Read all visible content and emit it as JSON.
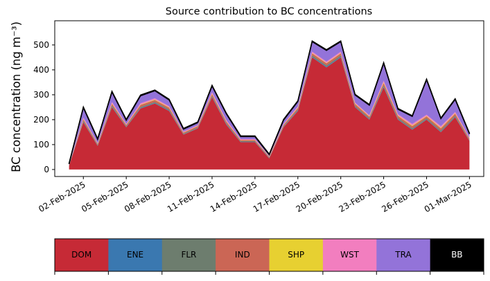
{
  "chart_data": {
    "type": "stacked_area",
    "title": "Source contribution to BC concentrations",
    "y_label": "BC concentration (ng m⁻³)",
    "x": [
      "01-Feb-2025",
      "02-Feb-2025",
      "03-Feb-2025",
      "04-Feb-2025",
      "05-Feb-2025",
      "06-Feb-2025",
      "07-Feb-2025",
      "08-Feb-2025",
      "09-Feb-2025",
      "10-Feb-2025",
      "11-Feb-2025",
      "12-Feb-2025",
      "13-Feb-2025",
      "14-Feb-2025",
      "15-Feb-2025",
      "16-Feb-2025",
      "17-Feb-2025",
      "18-Feb-2025",
      "19-Feb-2025",
      "20-Feb-2025",
      "21-Feb-2025",
      "22-Feb-2025",
      "23-Feb-2025",
      "24-Feb-2025",
      "25-Feb-2025",
      "26-Feb-2025",
      "27-Feb-2025",
      "28-Feb-2025",
      "01-Mar-2025"
    ],
    "xlim": [
      "31-Jan-2025",
      "02-Mar-2025"
    ],
    "xticks": [
      "02-Feb-2025",
      "05-Feb-2025",
      "08-Feb-2025",
      "11-Feb-2025",
      "14-Feb-2025",
      "17-Feb-2025",
      "20-Feb-2025",
      "23-Feb-2025",
      "26-Feb-2025",
      "01-Mar-2025"
    ],
    "ylim": [
      -28,
      597
    ],
    "yticks": [
      0,
      100,
      200,
      300,
      400,
      500
    ],
    "series": [
      {
        "name": "DOM",
        "color": "#c62a36",
        "values": [
          15,
          190,
          95,
          250,
          170,
          245,
          265,
          235,
          140,
          165,
          290,
          180,
          110,
          110,
          45,
          170,
          235,
          450,
          410,
          450,
          250,
          200,
          330,
          200,
          160,
          200,
          150,
          210,
          115
        ]
      },
      {
        "name": "ENE",
        "color": "#3a78b0",
        "values": [
          1,
          2,
          1,
          2,
          1,
          2,
          2,
          2,
          1,
          1,
          2,
          2,
          1,
          1,
          1,
          1,
          2,
          3,
          3,
          3,
          2,
          2,
          3,
          2,
          2,
          2,
          2,
          2,
          1
        ]
      },
      {
        "name": "FLR",
        "color": "#6d7d6e",
        "values": [
          1,
          4,
          3,
          5,
          3,
          4,
          4,
          4,
          3,
          3,
          4,
          4,
          3,
          3,
          2,
          3,
          4,
          5,
          5,
          5,
          4,
          4,
          5,
          5,
          4,
          4,
          5,
          4,
          3
        ]
      },
      {
        "name": "IND",
        "color": "#cb6655",
        "values": [
          1,
          6,
          4,
          7,
          5,
          8,
          8,
          7,
          4,
          5,
          7,
          6,
          4,
          4,
          3,
          5,
          6,
          8,
          8,
          8,
          7,
          6,
          9,
          8,
          8,
          7,
          8,
          8,
          5
        ]
      },
      {
        "name": "SHP",
        "color": "#e7d031",
        "values": [
          0,
          2,
          1,
          2,
          1,
          2,
          2,
          2,
          1,
          1,
          2,
          2,
          1,
          1,
          1,
          1,
          2,
          2,
          2,
          2,
          2,
          2,
          3,
          2,
          3,
          2,
          3,
          2,
          1
        ]
      },
      {
        "name": "WST",
        "color": "#f27ebf",
        "values": [
          1,
          4,
          2,
          5,
          3,
          5,
          5,
          4,
          3,
          3,
          5,
          4,
          3,
          3,
          2,
          3,
          4,
          5,
          5,
          5,
          4,
          4,
          6,
          5,
          6,
          5,
          6,
          5,
          3
        ]
      },
      {
        "name": "TRA",
        "color": "#9373d9",
        "values": [
          3,
          40,
          15,
          40,
          15,
          30,
          30,
          25,
          10,
          10,
          25,
          25,
          10,
          10,
          5,
          15,
          20,
          40,
          45,
          40,
          30,
          40,
          70,
          20,
          30,
          140,
          30,
          50,
          15
        ]
      },
      {
        "name": "BB",
        "color": "#000000",
        "values": [
          3,
          3,
          3,
          3,
          3,
          3,
          3,
          3,
          3,
          3,
          3,
          3,
          3,
          3,
          3,
          3,
          3,
          3,
          3,
          3,
          3,
          3,
          3,
          3,
          3,
          3,
          3,
          3,
          3
        ]
      }
    ]
  }
}
